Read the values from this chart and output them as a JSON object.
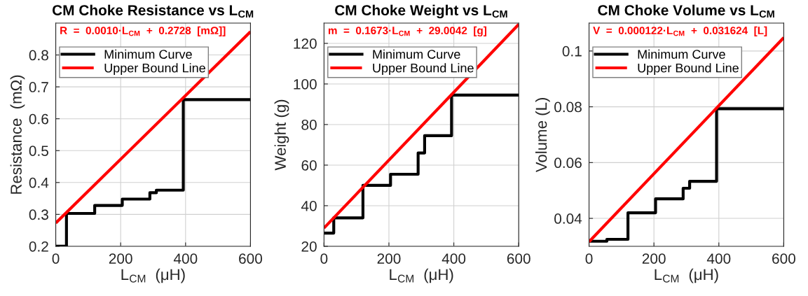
{
  "chart_data": [
    {
      "type": "line",
      "title": "CM Choke Resistance vs L$_{CM}$",
      "xlabel": "L$_{CM}$  (μH)",
      "ylabel": "Resistance  (mΩ)",
      "annotations": [
        "R  =  0.0010·L$_{CM}$  +  0.2728  [mΩ]]"
      ],
      "series": [
        {
          "name": "Minimum Curve",
          "type": "step",
          "color": "#000000",
          "x": [
            0,
            33,
            120,
            205,
            290,
            310,
            393,
            600
          ],
          "values": [
            0.2,
            0.303,
            0.328,
            0.348,
            0.368,
            0.376,
            0.66,
            0.66
          ]
        },
        {
          "name": "Upper Bound Line",
          "color": "#ff0000",
          "x": [
            0,
            600
          ],
          "values": [
            0.273,
            0.873
          ]
        }
      ],
      "xlim": [
        0,
        600
      ],
      "xticks": [
        0,
        200,
        400,
        600
      ],
      "ylim": [
        0.2,
        0.9
      ],
      "yticks": [
        0.2,
        0.3,
        0.4,
        0.5,
        0.6,
        0.7,
        0.8
      ],
      "grid": true,
      "legend": "top left"
    },
    {
      "type": "line",
      "title": "CM Choke Weight vs L$_{CM}$",
      "xlabel": "L$_{CM}$  (μH)",
      "ylabel": "Weight (g)",
      "annotations": [
        "m  =  0.1673·L$_{CM}$  +  29.0042  [g]"
      ],
      "series": [
        {
          "name": "Minimum Curve",
          "type": "step",
          "color": "#000000",
          "x": [
            0,
            30,
            120,
            205,
            290,
            310,
            393,
            600
          ],
          "values": [
            26.5,
            34,
            50,
            55.5,
            66,
            74.5,
            94.5,
            94.5
          ]
        },
        {
          "name": "Upper Bound Line",
          "color": "#ff0000",
          "x": [
            0,
            600
          ],
          "values": [
            29,
            129.4
          ]
        }
      ],
      "xlim": [
        0,
        600
      ],
      "xticks": [
        0,
        200,
        400,
        600
      ],
      "ylim": [
        20,
        130
      ],
      "yticks": [
        20,
        40,
        60,
        80,
        100,
        120
      ],
      "grid": true,
      "legend": "top left"
    },
    {
      "type": "line",
      "title": "CM Choke Volume vs L$_{CM}$",
      "xlabel": "L$_{CM}$  (μH)",
      "ylabel": "Volume (L)",
      "annotations": [
        "V  =  0.000122·L$_{CM}$  +  0.031624  [L]"
      ],
      "series": [
        {
          "name": "Minimum Curve",
          "type": "step",
          "color": "#000000",
          "x": [
            0,
            55,
            120,
            205,
            290,
            310,
            393,
            600
          ],
          "values": [
            0.0318,
            0.0325,
            0.042,
            0.047,
            0.0508,
            0.0533,
            0.0793,
            0.0793
          ]
        },
        {
          "name": "Upper Bound Line",
          "color": "#ff0000",
          "x": [
            0,
            600
          ],
          "values": [
            0.0316,
            0.1048
          ]
        }
      ],
      "xlim": [
        0,
        600
      ],
      "xticks": [
        0,
        200,
        400,
        600
      ],
      "ylim": [
        0.03,
        0.11
      ],
      "yticks": [
        0.04,
        0.06,
        0.08,
        0.1
      ],
      "grid": true,
      "legend": "top left"
    }
  ]
}
